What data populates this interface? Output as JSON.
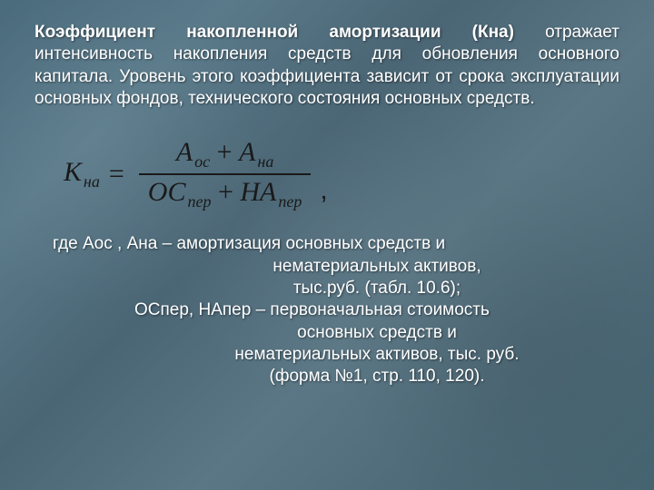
{
  "paragraph": {
    "bold_part": "Коэффициент накопленной амортизации (Кна)",
    "rest": " отражает интенсивность накопления средств для обновления основного капитала. Уровень этого коэффициента зависит от срока эксплуатации основных фондов, технического состояния основных средств."
  },
  "formula": {
    "lhs_var": "К",
    "lhs_sub": "на",
    "num_term1_var": "А",
    "num_term1_sub": "ос",
    "plus": " + ",
    "num_term2_var": "А",
    "num_term2_sub": "на",
    "den_term1_var": "ОС",
    "den_term1_sub": "пер",
    "den_term2_var": "НА",
    "den_term2_sub": "пер"
  },
  "where": {
    "line1": "где   Аос , Ана – амортизация основных средств и",
    "line1b": "нематериальных активов,",
    "line1c": "тыс.руб. (табл. 10.6);",
    "line2": "ОСпер, НАпер – первоначальная стоимость",
    "line2b": "основных средств и",
    "line2c": "нематериальных активов, тыс. руб.",
    "line2d": "(форма №1, стр. 110, 120)."
  }
}
